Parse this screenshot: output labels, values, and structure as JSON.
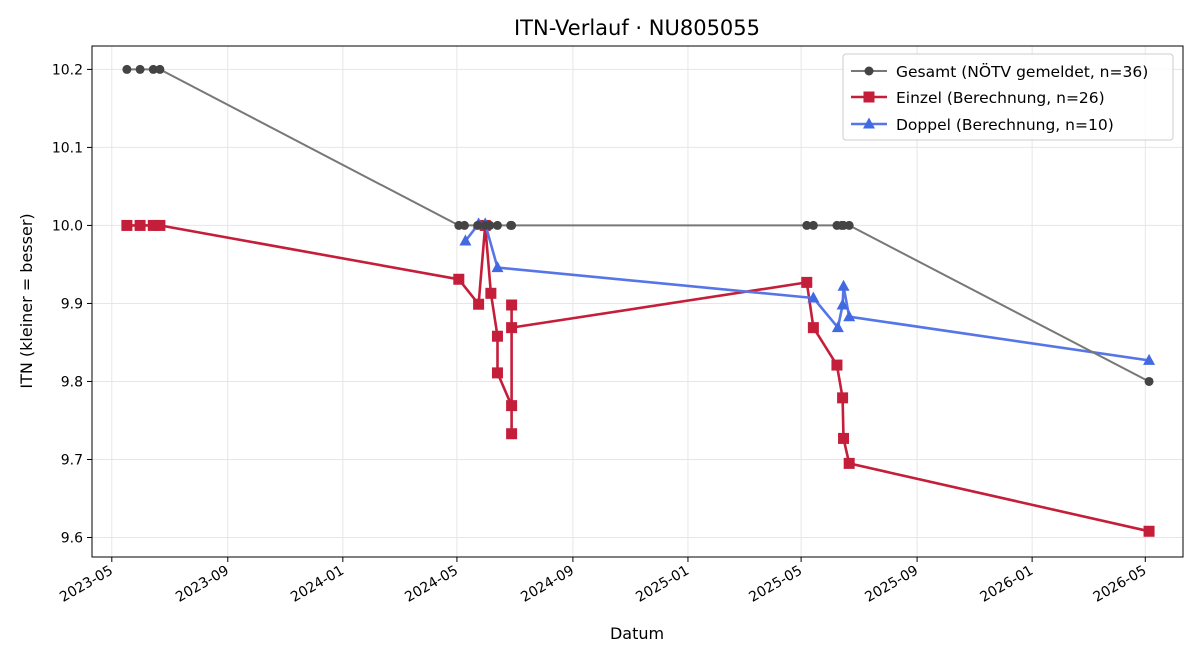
{
  "chart_data": {
    "type": "line",
    "title": "ITN-Verlauf · NU805055",
    "xlabel": "Datum",
    "ylabel": "ITN  (kleiner = besser)",
    "xlim": [
      "2023-04-10",
      "2026-06-10"
    ],
    "ylim": [
      9.575,
      10.23
    ],
    "x_ticks": [
      "2023-05",
      "2023-09",
      "2024-01",
      "2024-05",
      "2024-09",
      "2025-01",
      "2025-05",
      "2025-09",
      "2026-01",
      "2026-05"
    ],
    "y_ticks": [
      9.6,
      9.7,
      9.8,
      9.9,
      10.0,
      10.1,
      10.2
    ],
    "grid": true,
    "legend_position": "top-right",
    "series": [
      {
        "name": "Gesamt (NÖTV gemeldet, n=36)",
        "color": "#444444",
        "line_color": "#777777",
        "marker": "circle",
        "points": [
          [
            "2023-05-17",
            10.2
          ],
          [
            "2023-05-31",
            10.2
          ],
          [
            "2023-06-14",
            10.2
          ],
          [
            "2023-06-21",
            10.2
          ],
          [
            "2024-05-03",
            10.0
          ],
          [
            "2024-05-09",
            10.0
          ],
          [
            "2024-05-23",
            10.0
          ],
          [
            "2024-05-31",
            10.0
          ],
          [
            "2024-06-05",
            10.0
          ],
          [
            "2024-06-13",
            10.0
          ],
          [
            "2024-06-27",
            10.0
          ],
          [
            "2024-06-28",
            10.0
          ],
          [
            "2025-05-07",
            10.0
          ],
          [
            "2025-05-14",
            10.0
          ],
          [
            "2025-06-08",
            10.0
          ],
          [
            "2025-06-13",
            10.0
          ],
          [
            "2025-06-15",
            10.0
          ],
          [
            "2025-06-21",
            10.0
          ],
          [
            "2026-05-05",
            9.8
          ]
        ]
      },
      {
        "name": "Einzel (Berechnung, n=26)",
        "color": "#c41e3a",
        "line_color": "#c41e3a",
        "marker": "square",
        "points": [
          [
            "2023-05-17",
            10.0
          ],
          [
            "2023-05-31",
            10.0
          ],
          [
            "2023-06-14",
            10.0
          ],
          [
            "2023-06-21",
            10.0
          ],
          [
            "2024-05-03",
            9.931
          ],
          [
            "2024-05-24",
            9.899
          ],
          [
            "2024-05-31",
            10.0
          ],
          [
            "2024-06-06",
            9.913
          ],
          [
            "2024-06-13",
            9.858
          ],
          [
            "2024-06-13",
            9.811
          ],
          [
            "2024-06-28",
            9.769
          ],
          [
            "2024-06-28",
            9.733
          ],
          [
            "2024-06-28",
            9.898
          ],
          [
            "2024-06-28",
            9.869
          ],
          [
            "2025-05-07",
            9.927
          ],
          [
            "2025-05-14",
            9.869
          ],
          [
            "2025-06-08",
            9.821
          ],
          [
            "2025-06-14",
            9.779
          ],
          [
            "2025-06-15",
            9.727
          ],
          [
            "2025-06-21",
            9.695
          ],
          [
            "2026-05-05",
            9.608
          ]
        ]
      },
      {
        "name": "Doppel (Berechnung, n=10)",
        "color": "#4169e1",
        "line_color": "#5676e8",
        "marker": "triangle",
        "points": [
          [
            "2024-05-10",
            9.98
          ],
          [
            "2024-05-24",
            10.002
          ],
          [
            "2024-05-31",
            10.002
          ],
          [
            "2024-06-13",
            9.946
          ],
          [
            "2025-05-14",
            9.907
          ],
          [
            "2025-06-09",
            9.869
          ],
          [
            "2025-06-14",
            9.898
          ],
          [
            "2025-06-15",
            9.922
          ],
          [
            "2025-06-21",
            9.883
          ],
          [
            "2026-05-05",
            9.827
          ]
        ]
      }
    ]
  }
}
